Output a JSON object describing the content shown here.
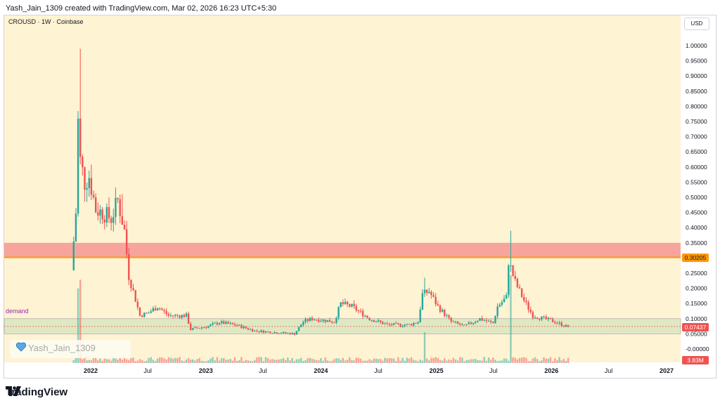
{
  "caption": "Yash_Jain_1309 created with TradingView.com, Mar 02, 2026 16:23 UTC+5:30",
  "symbol_line": "CROUSD · 1W · Coinbase",
  "currency": "USD",
  "watermark": "Yash_Jain_1309",
  "footer_logo": "TradingView",
  "demand_label": "demand",
  "price_badge": "0.07437",
  "level_badge": "0.30205",
  "volume_badge": "3.83M",
  "colors": {
    "up": "#26a69a",
    "down": "#ef5350",
    "supply_zone": "#f7a59c",
    "demand_zone": "#dfe8c3",
    "level_line": "#ff9800",
    "background": "#fef3d3"
  },
  "chart_data": {
    "type": "candlestick",
    "title": "CROUSD · 1W · Coinbase",
    "yaxis_ticks": [
      "1.00000",
      "0.95000",
      "0.90000",
      "0.85000",
      "0.80000",
      "0.75000",
      "0.70000",
      "0.65000",
      "0.60000",
      "0.55000",
      "0.50000",
      "0.45000",
      "0.40000",
      "0.35000",
      "0.30000",
      "0.25000",
      "0.20000",
      "0.15000",
      "0.10000",
      "0.05000",
      "-0.00000"
    ],
    "xaxis_ticks": [
      {
        "label": "2022",
        "major": true,
        "date": "2022-01-01"
      },
      {
        "label": "Jul",
        "major": false,
        "date": "2022-07-01"
      },
      {
        "label": "2023",
        "major": true,
        "date": "2023-01-01"
      },
      {
        "label": "Jul",
        "major": false,
        "date": "2023-07-01"
      },
      {
        "label": "2024",
        "major": true,
        "date": "2024-01-01"
      },
      {
        "label": "Jul",
        "major": false,
        "date": "2024-07-01"
      },
      {
        "label": "2025",
        "major": true,
        "date": "2025-01-01"
      },
      {
        "label": "Jul",
        "major": false,
        "date": "2025-07-01"
      },
      {
        "label": "2026",
        "major": true,
        "date": "2026-01-01"
      },
      {
        "label": "Jul",
        "major": false,
        "date": "2026-07-01"
      },
      {
        "label": "2027",
        "major": true,
        "date": "2027-01-01"
      }
    ],
    "ylim": [
      0,
      1.0
    ],
    "supply_zone": [
      0.302,
      0.35
    ],
    "demand_zone": [
      0.05,
      0.1
    ],
    "level_line": 0.30205,
    "last_price": 0.07437,
    "last_volume": "3.83M",
    "price_path": [
      [
        "2021-11-08",
        0.26
      ],
      [
        "2021-11-22",
        0.45
      ],
      [
        "2021-11-29",
        0.75
      ],
      [
        "2021-12-06",
        0.62
      ],
      [
        "2021-12-20",
        0.55
      ],
      [
        "2022-01-03",
        0.57
      ],
      [
        "2022-01-24",
        0.46
      ],
      [
        "2022-02-14",
        0.45
      ],
      [
        "2022-03-14",
        0.43
      ],
      [
        "2022-04-04",
        0.49
      ],
      [
        "2022-04-25",
        0.39
      ],
      [
        "2022-05-09",
        0.24
      ],
      [
        "2022-05-23",
        0.19
      ],
      [
        "2022-06-13",
        0.11
      ],
      [
        "2022-07-11",
        0.12
      ],
      [
        "2022-08-08",
        0.14
      ],
      [
        "2022-09-12",
        0.11
      ],
      [
        "2022-10-24",
        0.11
      ],
      [
        "2022-11-07",
        0.11
      ],
      [
        "2022-11-21",
        0.065
      ],
      [
        "2023-01-16",
        0.075
      ],
      [
        "2023-02-20",
        0.088
      ],
      [
        "2023-04-17",
        0.078
      ],
      [
        "2023-06-12",
        0.06
      ],
      [
        "2023-08-14",
        0.055
      ],
      [
        "2023-10-16",
        0.05
      ],
      [
        "2023-11-13",
        0.09
      ],
      [
        "2023-12-11",
        0.1
      ],
      [
        "2024-02-19",
        0.09
      ],
      [
        "2024-03-11",
        0.15
      ],
      [
        "2024-04-15",
        0.14
      ],
      [
        "2024-06-10",
        0.1
      ],
      [
        "2024-08-05",
        0.08
      ],
      [
        "2024-10-14",
        0.08
      ],
      [
        "2024-11-11",
        0.09
      ],
      [
        "2024-11-25",
        0.18
      ],
      [
        "2024-12-16",
        0.19
      ],
      [
        "2025-01-13",
        0.14
      ],
      [
        "2025-02-24",
        0.09
      ],
      [
        "2025-04-07",
        0.075
      ],
      [
        "2025-05-26",
        0.1
      ],
      [
        "2025-07-07",
        0.085
      ],
      [
        "2025-07-21",
        0.14
      ],
      [
        "2025-08-18",
        0.17
      ],
      [
        "2025-08-25",
        0.29
      ],
      [
        "2025-09-15",
        0.22
      ],
      [
        "2025-10-13",
        0.16
      ],
      [
        "2025-11-10",
        0.11
      ],
      [
        "2025-12-15",
        0.1
      ],
      [
        "2026-01-19",
        0.09
      ],
      [
        "2026-02-23",
        0.075
      ]
    ],
    "spikes": [
      [
        "2021-11-29",
        0.99
      ],
      [
        "2022-04-11",
        0.51
      ],
      [
        "2024-11-25",
        0.235
      ],
      [
        "2025-08-25",
        0.39
      ]
    ],
    "volume_spikes": [
      [
        "2021-11-22",
        0.85
      ],
      [
        "2021-11-29",
        0.95
      ],
      [
        "2024-11-25",
        0.35
      ],
      [
        "2025-08-25",
        1.0
      ]
    ]
  }
}
